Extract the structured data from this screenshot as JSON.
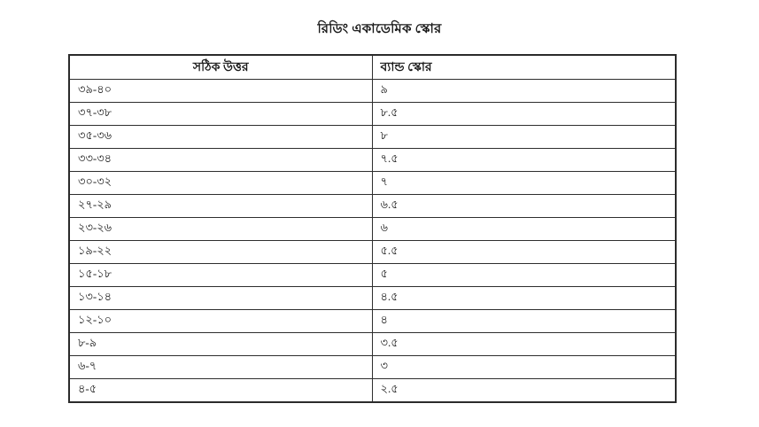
{
  "title": "রিডিং একাডেমিক স্কোর",
  "table": {
    "headers": [
      "সঠিক উত্তর",
      "ব্যান্ড স্কোর"
    ],
    "rows": [
      [
        "৩৯-৪০",
        "৯"
      ],
      [
        "৩৭-৩৮",
        "৮.৫"
      ],
      [
        "৩৫-৩৬",
        "৮"
      ],
      [
        "৩৩-৩৪",
        "৭.৫"
      ],
      [
        "৩০-৩২",
        "৭"
      ],
      [
        "২৭-২৯",
        "৬.৫"
      ],
      [
        "২৩-২৬",
        "৬"
      ],
      [
        "১৯-২২",
        "৫.৫"
      ],
      [
        "১৫-১৮",
        "৫"
      ],
      [
        "১৩-১৪",
        "৪.৫"
      ],
      [
        "১২-১০",
        "৪"
      ],
      [
        "৮-৯",
        "৩.৫"
      ],
      [
        "৬-৭",
        "৩"
      ],
      [
        "৪-৫",
        "২.৫"
      ]
    ]
  },
  "colors": {
    "background": "#ffffff",
    "text": "#1a1a1a",
    "border": "#2e2e2e"
  }
}
